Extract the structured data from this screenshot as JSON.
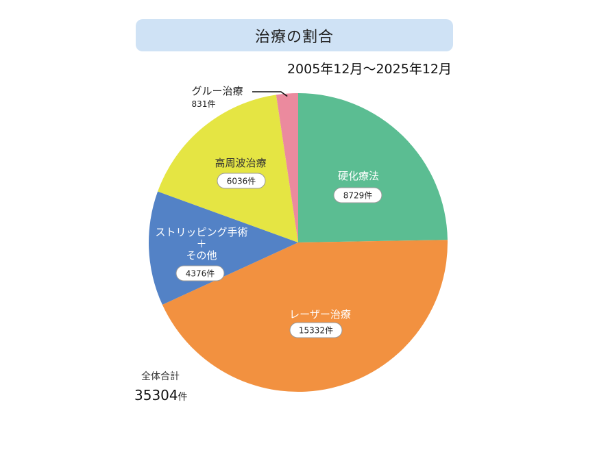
{
  "chart_data": {
    "type": "pie",
    "title": "治療の割合",
    "subtitle": "2005年12月～2025年12月",
    "unit": "件",
    "slices": [
      {
        "label": "硬化療法",
        "value": 8729,
        "value_text": "8729件",
        "color": "#5bbd92"
      },
      {
        "label": "レーザー治療",
        "value": 15332,
        "value_text": "15332件",
        "color": "#f29140"
      },
      {
        "label": "ストリッピング手術\n＋\nその他",
        "value": 4376,
        "value_text": "4376件",
        "color": "#5382c6"
      },
      {
        "label": "高周波治療",
        "value": 6036,
        "value_text": "6036件",
        "color": "#e5e543"
      },
      {
        "label": "グルー治療",
        "value": 831,
        "value_text": "831件",
        "color": "#eb8a9e"
      }
    ],
    "total_label": "全体合計",
    "total_value": "35304",
    "total_unit": "件"
  }
}
